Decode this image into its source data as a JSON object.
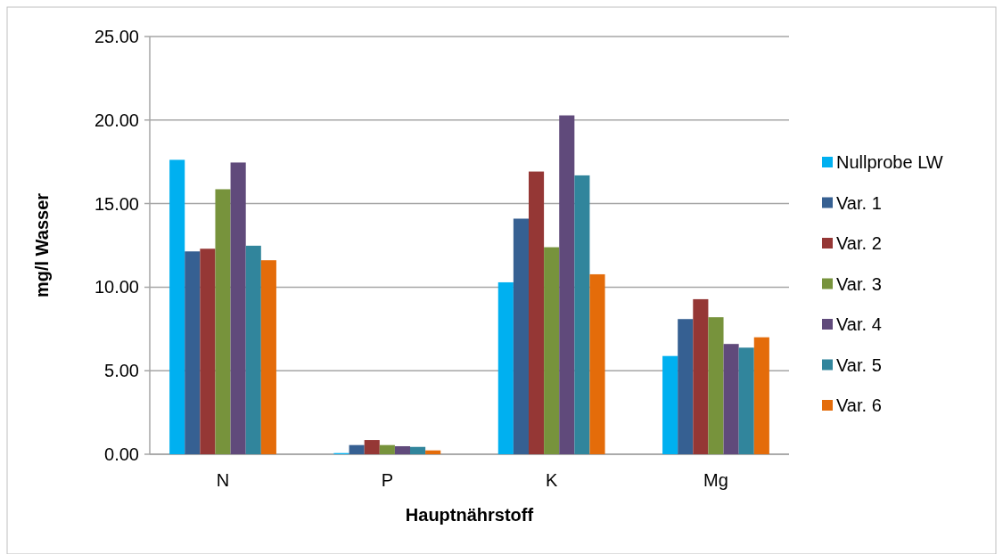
{
  "chart_data": {
    "type": "bar",
    "xlabel": "Hauptnährstoff",
    "ylabel": "mg/l Wasser",
    "categories": [
      "N",
      "P",
      "K",
      "Mg"
    ],
    "series": [
      {
        "name": "Nullprobe LW",
        "color": "#00b0f0",
        "values": [
          17.62,
          0.07,
          10.29,
          5.88
        ]
      },
      {
        "name": "Var. 1",
        "color": "#366092",
        "values": [
          12.14,
          0.55,
          14.1,
          8.09
        ]
      },
      {
        "name": "Var. 2",
        "color": "#953735",
        "values": [
          12.3,
          0.85,
          16.92,
          9.28
        ]
      },
      {
        "name": "Var. 3",
        "color": "#77933c",
        "values": [
          15.86,
          0.55,
          12.39,
          8.2
        ]
      },
      {
        "name": "Var. 4",
        "color": "#604a7b",
        "values": [
          17.46,
          0.48,
          20.28,
          6.6
        ]
      },
      {
        "name": "Var. 5",
        "color": "#31859c",
        "values": [
          12.48,
          0.44,
          16.69,
          6.38
        ]
      },
      {
        "name": "Var. 6",
        "color": "#e46c0a",
        "values": [
          11.61,
          0.23,
          10.77,
          7.0
        ]
      }
    ],
    "ylim": [
      0,
      25
    ],
    "yticks": [
      {
        "value": 0,
        "label": "0.00"
      },
      {
        "value": 5,
        "label": "5.00"
      },
      {
        "value": 10,
        "label": "10.00"
      },
      {
        "value": 15,
        "label": "15.00"
      },
      {
        "value": 20,
        "label": "20.00"
      },
      {
        "value": 25,
        "label": "25.00"
      }
    ],
    "grid": "y",
    "legend": "right"
  }
}
